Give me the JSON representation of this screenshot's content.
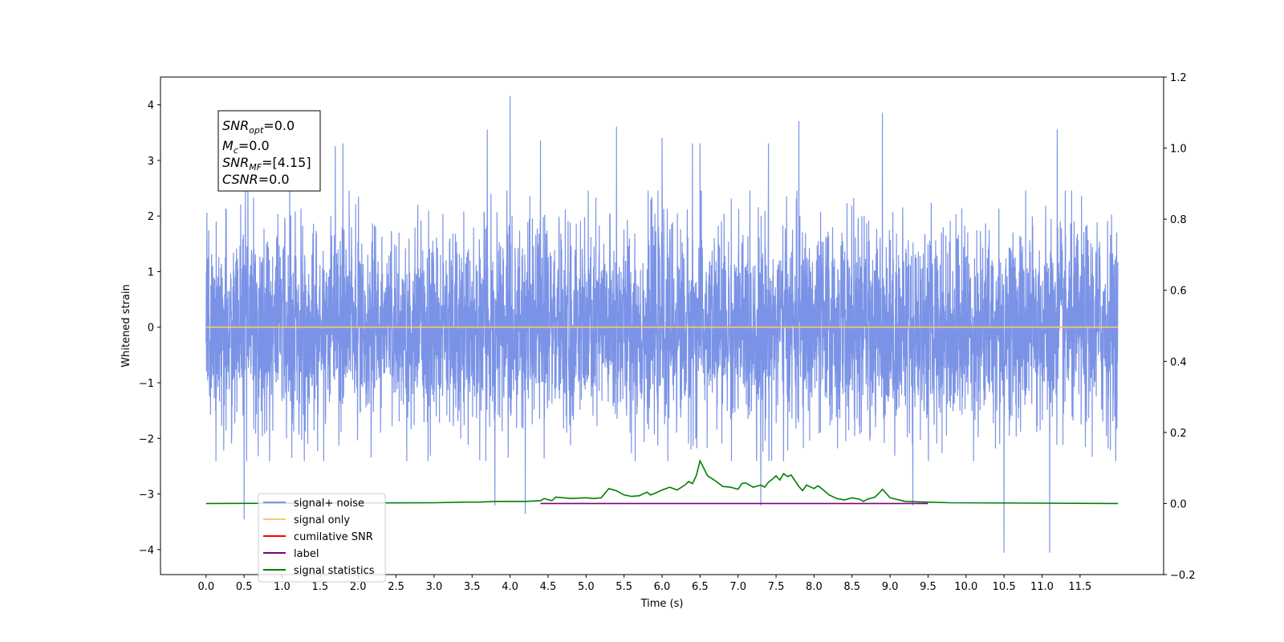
{
  "chart_data": {
    "type": "line",
    "xlabel": "Time (s)",
    "ylabel": "Whitened strain",
    "xlim": [
      -0.6,
      12.6
    ],
    "ylim": [
      -4.45,
      4.5
    ],
    "y2lim": [
      -0.2,
      1.2
    ],
    "x_ticks": [
      "0.0",
      "0.5",
      "1.0",
      "1.5",
      "2.0",
      "2.5",
      "3.0",
      "3.5",
      "4.0",
      "4.5",
      "5.0",
      "5.5",
      "6.0",
      "6.5",
      "7.0",
      "7.5",
      "8.0",
      "8.5",
      "9.0",
      "9.5",
      "10.0",
      "10.5",
      "11.0",
      "11.5"
    ],
    "y_ticks": [
      "4",
      "3",
      "2",
      "1",
      "0",
      "−1",
      "−2",
      "−3",
      "−4"
    ],
    "y2_ticks": [
      "1.2",
      "1.0",
      "0.8",
      "0.6",
      "0.4",
      "0.2",
      "0.0",
      "−0.2"
    ],
    "stats_box": {
      "snr_opt": {
        "sym": "SNR",
        "sub": "opt",
        "value": "=0.0"
      },
      "mc": {
        "sym": "M",
        "sub": "c",
        "value": "=0.0"
      },
      "snr_mf": {
        "sym": "SNR",
        "sub": "MF",
        "value": "=[4.15]"
      },
      "csnr": {
        "sym": "CSNR",
        "value": "=0.0"
      }
    },
    "legend_position": "lower-left",
    "legend": [
      {
        "label": "signal+ noise",
        "color": "#7b93e6"
      },
      {
        "label": "signal only",
        "color": "#ffc86e"
      },
      {
        "label": "cumilative SNR",
        "color": "#ff0000"
      },
      {
        "label": "label",
        "color": "#800080"
      },
      {
        "label": "signal statistics",
        "color": "#008000"
      }
    ],
    "series": [
      {
        "name": "signal+ noise",
        "axis": "left",
        "color": "#7b93e6",
        "t_range": [
          0.0,
          12.0
        ],
        "mean": 0.0,
        "std": 0.9,
        "extremes": [
          {
            "x": 0.5,
            "y": -3.45
          },
          {
            "x": 0.55,
            "y": 2.9
          },
          {
            "x": 1.1,
            "y": 3.3
          },
          {
            "x": 1.7,
            "y": 3.25
          },
          {
            "x": 1.8,
            "y": 3.3
          },
          {
            "x": 3.7,
            "y": 3.55
          },
          {
            "x": 3.8,
            "y": -3.2
          },
          {
            "x": 4.0,
            "y": 4.15
          },
          {
            "x": 4.2,
            "y": -3.35
          },
          {
            "x": 4.4,
            "y": 3.35
          },
          {
            "x": 5.4,
            "y": 3.6
          },
          {
            "x": 6.0,
            "y": 3.4
          },
          {
            "x": 6.4,
            "y": 3.3
          },
          {
            "x": 6.5,
            "y": 3.3
          },
          {
            "x": 7.3,
            "y": -3.2
          },
          {
            "x": 7.4,
            "y": 3.3
          },
          {
            "x": 7.8,
            "y": 3.7
          },
          {
            "x": 8.9,
            "y": 3.85
          },
          {
            "x": 9.3,
            "y": -3.2
          },
          {
            "x": 10.5,
            "y": -4.05
          },
          {
            "x": 11.1,
            "y": -4.05
          },
          {
            "x": 11.2,
            "y": 3.55
          }
        ]
      },
      {
        "name": "signal only",
        "axis": "left",
        "color": "#ffc86e",
        "x": [
          0.0,
          12.0
        ],
        "y": [
          0.0,
          0.0
        ]
      },
      {
        "name": "label",
        "axis": "right",
        "color": "#800080",
        "x": [
          4.4,
          9.5
        ],
        "y": [
          0.0,
          0.0
        ]
      },
      {
        "name": "signal statistics",
        "axis": "right",
        "color": "#008000",
        "x": [
          0.0,
          3.0,
          3.4,
          3.5,
          3.6,
          3.8,
          4.0,
          4.2,
          4.4,
          4.45,
          4.55,
          4.6,
          4.7,
          4.8,
          5.0,
          5.1,
          5.2,
          5.3,
          5.4,
          5.5,
          5.6,
          5.7,
          5.8,
          5.85,
          5.9,
          6.0,
          6.1,
          6.2,
          6.3,
          6.35,
          6.4,
          6.45,
          6.5,
          6.6,
          6.7,
          6.8,
          6.9,
          7.0,
          7.05,
          7.1,
          7.2,
          7.3,
          7.35,
          7.4,
          7.45,
          7.5,
          7.55,
          7.6,
          7.65,
          7.7,
          7.8,
          7.85,
          7.9,
          8.0,
          8.05,
          8.1,
          8.2,
          8.3,
          8.4,
          8.5,
          8.6,
          8.65,
          8.7,
          8.8,
          8.85,
          8.9,
          9.0,
          9.2,
          9.5,
          9.8,
          12.0
        ],
        "y": [
          0.0,
          0.002,
          0.004,
          0.004,
          0.004,
          0.006,
          0.006,
          0.006,
          0.008,
          0.014,
          0.008,
          0.018,
          0.016,
          0.014,
          0.016,
          0.014,
          0.016,
          0.042,
          0.036,
          0.024,
          0.02,
          0.022,
          0.032,
          0.024,
          0.028,
          0.038,
          0.046,
          0.038,
          0.052,
          0.062,
          0.056,
          0.078,
          0.12,
          0.078,
          0.064,
          0.048,
          0.046,
          0.04,
          0.056,
          0.058,
          0.046,
          0.052,
          0.046,
          0.06,
          0.068,
          0.078,
          0.066,
          0.084,
          0.076,
          0.08,
          0.048,
          0.036,
          0.052,
          0.042,
          0.05,
          0.042,
          0.024,
          0.014,
          0.01,
          0.016,
          0.012,
          0.006,
          0.012,
          0.018,
          0.028,
          0.04,
          0.016,
          0.006,
          0.004,
          0.002,
          0.0
        ]
      }
    ]
  }
}
